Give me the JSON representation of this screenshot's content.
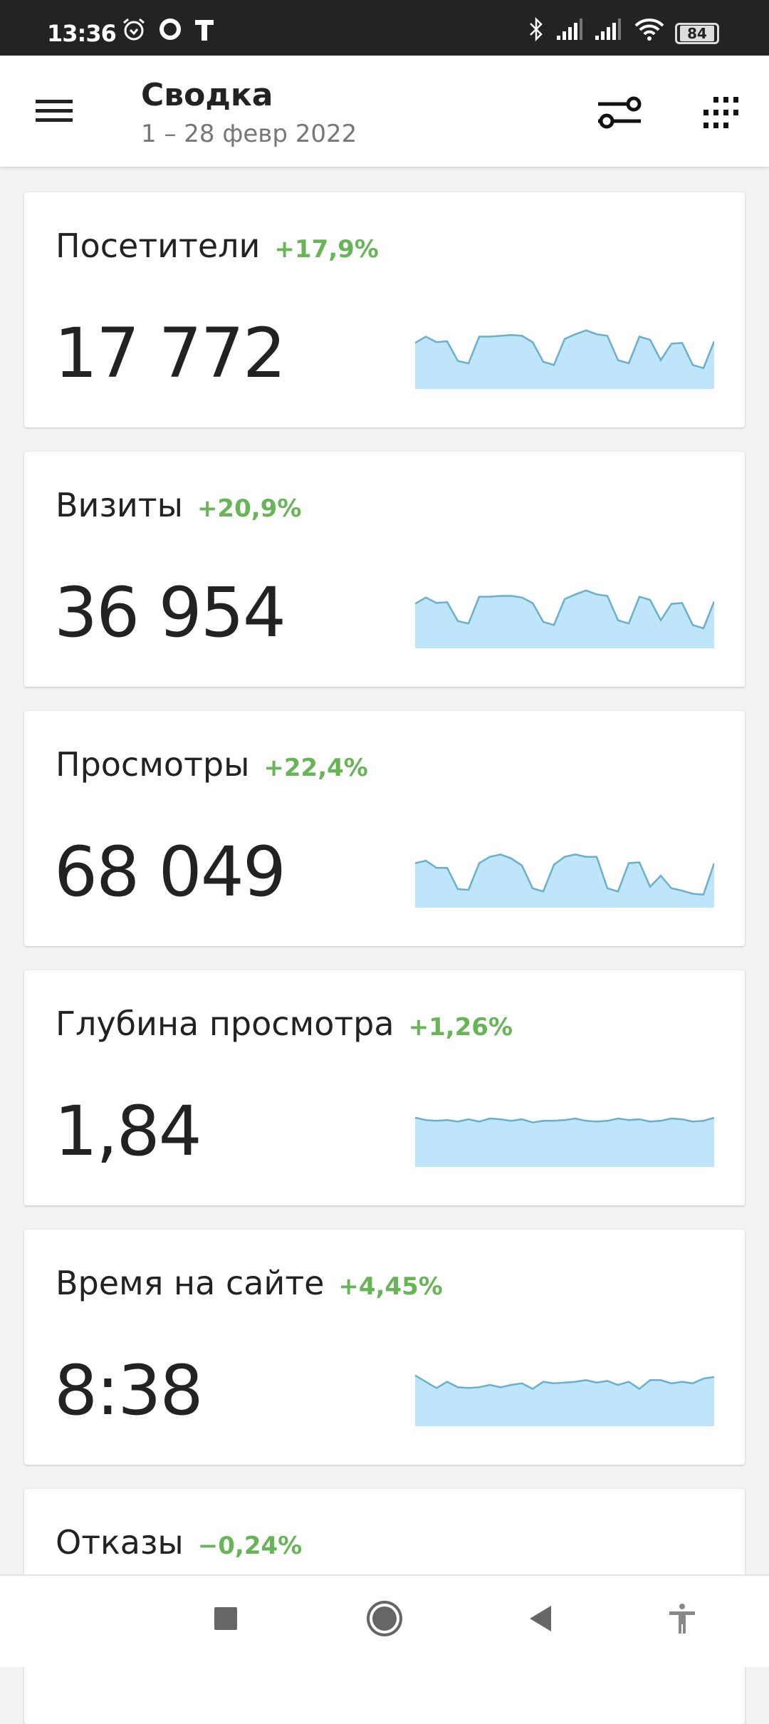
{
  "status_bar": {
    "time": "13:36",
    "battery": "84",
    "icons": [
      "alarm-icon",
      "chat-icon",
      "t-app-icon",
      "bluetooth-icon",
      "signal-icon",
      "signal-icon",
      "wifi-icon",
      "battery-icon"
    ]
  },
  "header": {
    "title": "Сводка",
    "subtitle": "1 – 28 февр 2022",
    "icons": [
      "menu-icon",
      "filter-sliders-icon",
      "apps-grid-icon"
    ]
  },
  "colors": {
    "positive": "#67b556",
    "spark_fill": "#bfe5fb",
    "spark_line": "#6aaed0"
  },
  "cards": [
    {
      "label": "Посетители",
      "change": "+17,9%",
      "value": "17 772",
      "trend": [
        64,
        72,
        65,
        66,
        41,
        38,
        72,
        72,
        73,
        74,
        73,
        65,
        40,
        36,
        69,
        75,
        80,
        75,
        73,
        42,
        38,
        72,
        68,
        42,
        63,
        64,
        36,
        32,
        66
      ]
    },
    {
      "label": "Визиты",
      "change": "+20,9%",
      "value": "36 954",
      "trend": [
        62,
        70,
        63,
        64,
        40,
        37,
        71,
        71,
        72,
        72,
        70,
        63,
        39,
        35,
        68,
        74,
        79,
        74,
        72,
        41,
        37,
        71,
        67,
        41,
        62,
        63,
        35,
        31,
        65
      ]
    },
    {
      "label": "Просмотры",
      "change": "+22,4%",
      "value": "68 049",
      "trend": [
        62,
        65,
        56,
        56,
        29,
        28,
        62,
        70,
        73,
        68,
        59,
        30,
        26,
        60,
        70,
        73,
        70,
        70,
        30,
        26,
        62,
        63,
        32,
        46,
        30,
        27,
        23,
        22,
        62
      ]
    },
    {
      "label": "Глубина просмотра",
      "change": "+1,26%",
      "value": "1,84",
      "trend": [
        68,
        65,
        64,
        65,
        63,
        66,
        63,
        67,
        66,
        64,
        66,
        62,
        64,
        64,
        65,
        67,
        64,
        63,
        64,
        67,
        65,
        66,
        63,
        64,
        67,
        66,
        63,
        64,
        68
      ]
    },
    {
      "label": "Время на сайте",
      "change": "+4,45%",
      "value": "8:38",
      "trend": [
        70,
        62,
        54,
        62,
        55,
        54,
        55,
        58,
        55,
        58,
        60,
        53,
        62,
        60,
        61,
        62,
        64,
        61,
        63,
        58,
        62,
        53,
        64,
        64,
        60,
        62,
        60,
        66,
        68
      ]
    },
    {
      "label": "Отказы",
      "change": "−0,24%"
    }
  ],
  "nav": {
    "icons": [
      "recents-square-icon",
      "home-circle-icon",
      "back-triangle-icon",
      "accessibility-icon"
    ]
  }
}
